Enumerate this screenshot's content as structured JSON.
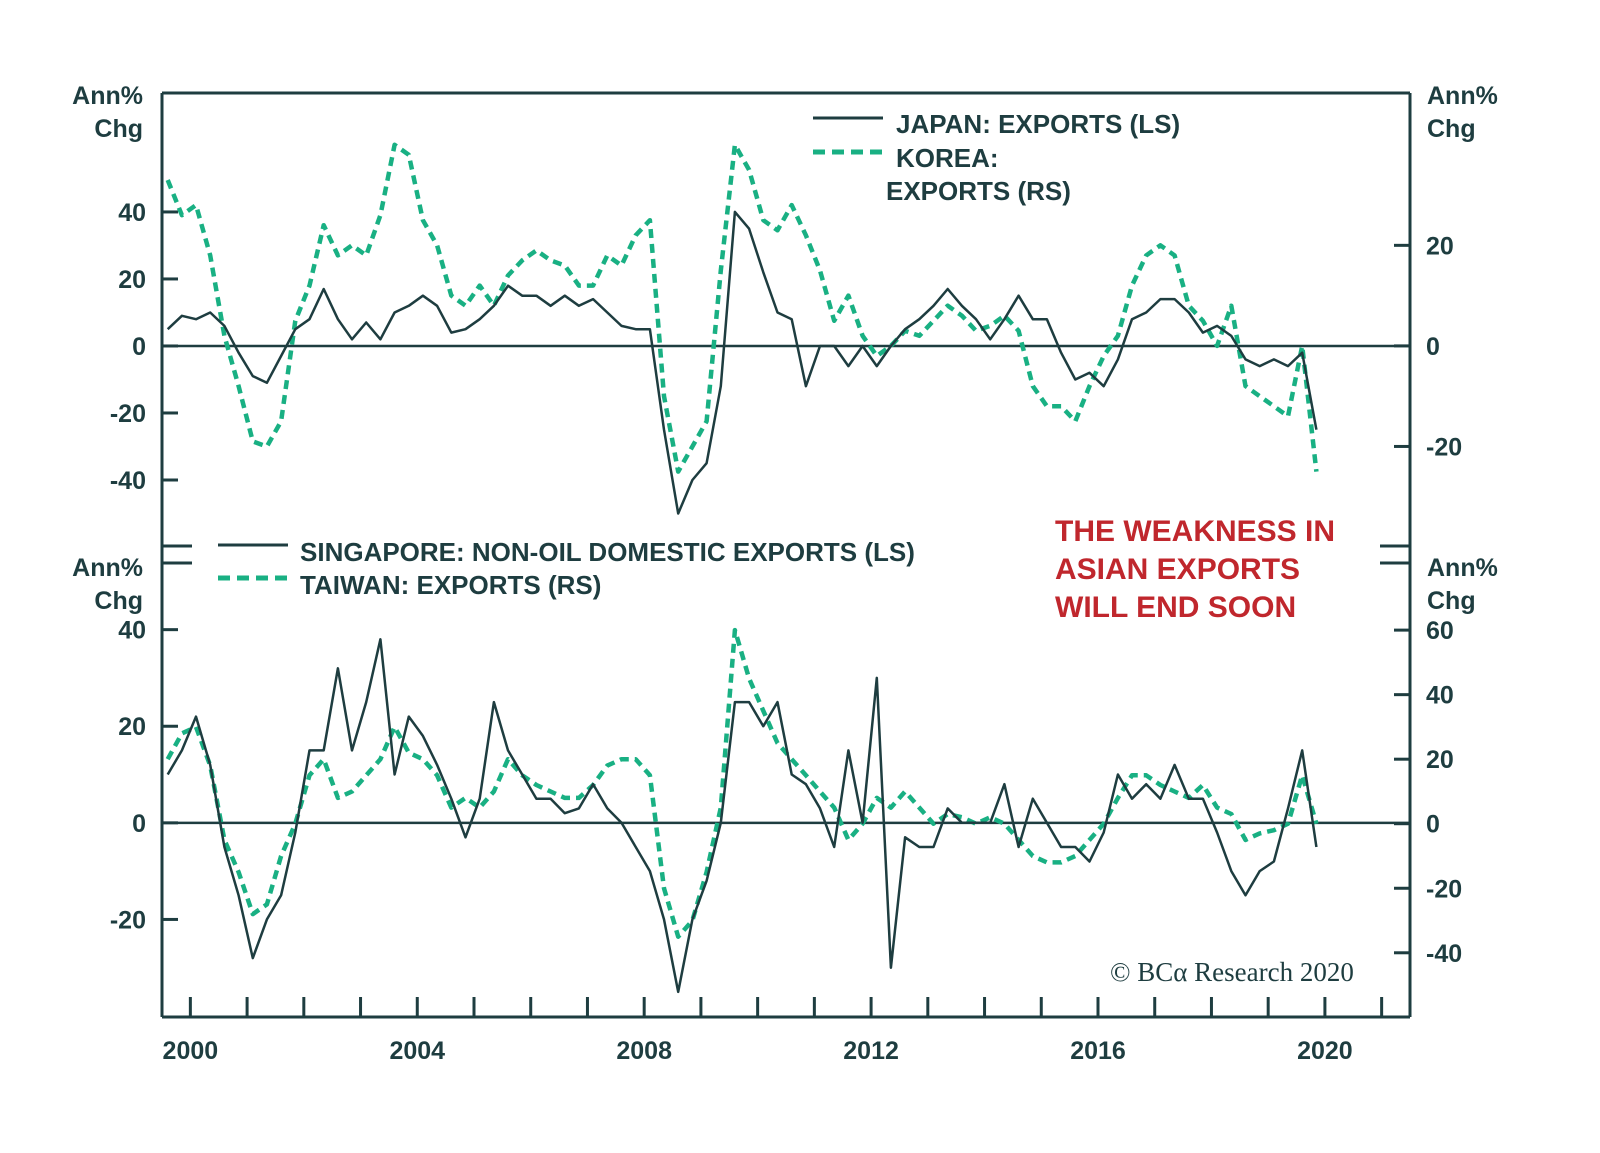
{
  "chart_data": [
    {
      "type": "line",
      "panel": "top",
      "x_range": [
        1999.5,
        2021.5
      ],
      "x_start": 1999.6,
      "x_step": 0.25,
      "left_axis": {
        "label_line1": "Ann%",
        "label_line2": "Chg",
        "range": [
          -59.7,
          75.5
        ],
        "ticks": [
          40,
          20,
          0,
          -20,
          -40
        ]
      },
      "right_axis": {
        "label_line1": "Ann%",
        "label_line2": "Chg",
        "range": [
          -39.8,
          50.3
        ],
        "ticks": [
          20,
          0,
          -20
        ]
      },
      "zero_line": true,
      "series": [
        {
          "name": "JAPAN: EXPORTS (LS)",
          "axis": "left",
          "style": "solid",
          "color": "#1e3d40",
          "values": [
            5,
            9,
            8,
            10,
            6,
            -2,
            -9,
            -11,
            -3,
            5,
            8,
            17,
            8,
            2,
            7,
            2,
            10,
            12,
            15,
            12,
            4,
            5,
            8,
            12,
            18,
            15,
            15,
            12,
            15,
            12,
            14,
            10,
            6,
            5,
            5,
            -25,
            -50,
            -40,
            -35,
            -12,
            40,
            35,
            22,
            10,
            8,
            -12,
            0,
            0,
            -6,
            0,
            -6,
            0,
            5,
            8,
            12,
            17,
            12,
            8,
            2,
            8,
            15,
            8,
            8,
            -2,
            -10,
            -8,
            -12,
            -4,
            8,
            10,
            14,
            14,
            10,
            4,
            6,
            3,
            -4,
            -6,
            -4,
            -6,
            -2,
            -25
          ]
        },
        {
          "name": "KOREA: EXPORTS (RS)",
          "legend_line1": "KOREA:",
          "legend_line2": "EXPORTS (RS)",
          "axis": "right",
          "style": "dashed",
          "color": "#19b083",
          "values": [
            33,
            26,
            28,
            18,
            2,
            -8,
            -19,
            -20,
            -15,
            5,
            12,
            24,
            18,
            20,
            18,
            26,
            40,
            38,
            25,
            20,
            10,
            8,
            12,
            8,
            14,
            17,
            19,
            17,
            16,
            12,
            12,
            18,
            16,
            22,
            25,
            -10,
            -25,
            -20,
            -15,
            15,
            40,
            35,
            25,
            23,
            28,
            22,
            15,
            5,
            10,
            2,
            -2,
            0,
            3,
            2,
            5,
            8,
            6,
            3,
            4,
            6,
            3,
            -8,
            -12,
            -12,
            -15,
            -8,
            -2,
            2,
            12,
            18,
            20,
            18,
            8,
            5,
            0,
            8,
            -8,
            -10,
            -12,
            -14,
            0,
            -25
          ]
        }
      ]
    },
    {
      "type": "line",
      "panel": "bottom",
      "x_range": [
        1999.5,
        2021.5
      ],
      "x_start": 1999.6,
      "x_step": 0.25,
      "x_tick_labels": [
        "2000",
        "2004",
        "2008",
        "2012",
        "2016",
        "2020"
      ],
      "x_tick_label_years": [
        2000,
        2004,
        2008,
        2012,
        2016,
        2020
      ],
      "x_minor_ticks_every_year": true,
      "left_axis": {
        "label_line1": "Ann%",
        "label_line2": "Chg",
        "range": [
          -40.2,
          53.8
        ],
        "ticks": [
          40,
          20,
          0,
          -20
        ]
      },
      "right_axis": {
        "label_line1": "Ann%",
        "label_line2": "Chg",
        "range": [
          -59.9,
          80.8
        ],
        "ticks": [
          60,
          40,
          20,
          0,
          -20,
          -40
        ]
      },
      "zero_line": true,
      "series": [
        {
          "name": "SINGAPORE: NON-OIL DOMESTIC EXPORTS (LS)",
          "axis": "left",
          "style": "solid",
          "color": "#1e3d40",
          "values": [
            10,
            15,
            22,
            12,
            -5,
            -15,
            -28,
            -20,
            -15,
            -2,
            15,
            15,
            32,
            15,
            25,
            38,
            10,
            22,
            18,
            12,
            5,
            -3,
            5,
            25,
            15,
            10,
            5,
            5,
            2,
            3,
            8,
            3,
            0,
            -5,
            -10,
            -20,
            -35,
            -20,
            -12,
            0,
            25,
            25,
            20,
            25,
            10,
            8,
            3,
            -5,
            15,
            0,
            30,
            -30,
            -3,
            -5,
            -5,
            3,
            0,
            0,
            0,
            8,
            -5,
            5,
            0,
            -5,
            -5,
            -8,
            -2,
            10,
            5,
            8,
            5,
            12,
            5,
            5,
            -2,
            -10,
            -15,
            -10,
            -8,
            3,
            15,
            -5
          ]
        },
        {
          "name": "TAIWAN: EXPORTS (RS)",
          "axis": "right",
          "style": "dashed",
          "color": "#19b083",
          "values": [
            20,
            28,
            30,
            18,
            -5,
            -15,
            -28,
            -25,
            -10,
            0,
            15,
            20,
            8,
            10,
            15,
            20,
            30,
            22,
            20,
            15,
            5,
            8,
            5,
            10,
            20,
            15,
            12,
            10,
            8,
            8,
            12,
            18,
            20,
            20,
            15,
            -20,
            -35,
            -30,
            -15,
            5,
            60,
            45,
            35,
            25,
            20,
            15,
            10,
            5,
            -5,
            0,
            8,
            5,
            10,
            5,
            0,
            3,
            2,
            0,
            2,
            0,
            -5,
            -10,
            -12,
            -12,
            -10,
            -5,
            0,
            8,
            15,
            15,
            12,
            10,
            8,
            12,
            5,
            3,
            -5,
            -3,
            -2,
            0,
            15,
            0
          ]
        }
      ]
    }
  ],
  "annotation": {
    "line1": "THE WEAKNESS IN",
    "line2": "ASIAN EXPORTS",
    "line3": "WILL END SOON",
    "color": "#c0272d"
  },
  "copyright": "© BCα Research 2020"
}
